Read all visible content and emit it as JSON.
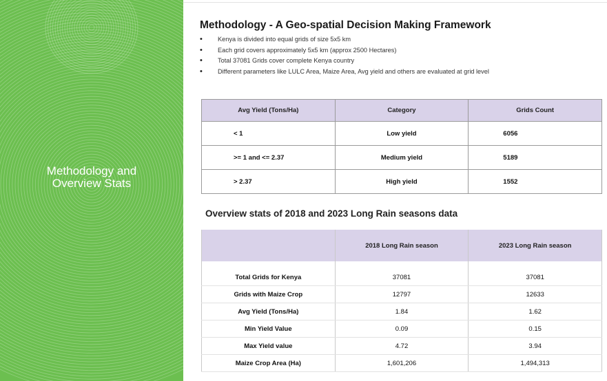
{
  "panel": {
    "title_line1": "Methodology and",
    "title_line2": "Overview Stats",
    "color": "#6cbf50"
  },
  "methodology": {
    "title": "Methodology - A Geo-spatial Decision Making Framework",
    "bullets": [
      "Kenya is divided into equal grids of size 5x5 km",
      "Each grid covers approximately 5x5 km (approx 2500 Hectares)",
      "Total 37081 Grids cover complete Kenya country",
      "Different parameters like LULC Area, Maize Area, Avg yield and others are evaluated at grid level"
    ]
  },
  "yield_table": {
    "headers": [
      "Avg Yield (Tons/Ha)",
      "Category",
      "Grids Count"
    ],
    "rows": [
      [
        "< 1",
        "Low yield",
        "6056"
      ],
      [
        ">= 1 and <= 2.37",
        "Medium yield",
        "5189"
      ],
      [
        "> 2.37",
        "High yield",
        "1552"
      ]
    ]
  },
  "overview": {
    "title": "Overview stats of 2018 and 2023 Long Rain seasons data",
    "headers": [
      "",
      "2018 Long Rain season",
      "2023 Long Rain season"
    ],
    "rows": [
      [
        "Total Grids for Kenya",
        "37081",
        "37081"
      ],
      [
        "Grids with Maize Crop",
        "12797",
        "12633"
      ],
      [
        "Avg Yield (Tons/Ha)",
        "1.84",
        "1.62"
      ],
      [
        "Min Yield Value",
        "0.09",
        "0.15"
      ],
      [
        "Max Yield value",
        "4.72",
        "3.94"
      ],
      [
        "Maize Crop Area (Ha)",
        "1,601,206",
        "1,494,313"
      ]
    ]
  },
  "colors": {
    "header_bg": "#d9d2e9",
    "panel_green": "#6cbf50"
  }
}
